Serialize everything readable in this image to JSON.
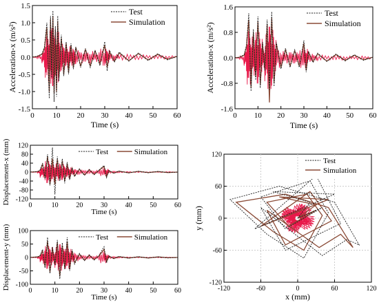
{
  "colors": {
    "test": "#1a1a1a",
    "simulation": "#8a4a36",
    "noise": "#e8194a"
  },
  "chart_data": [
    {
      "id": "acc-x",
      "type": "line",
      "xlabel": "Time (s)",
      "ylabel": "Acceleration-x (m/s²)",
      "xlim": [
        0,
        60
      ],
      "ylim": [
        -1.5,
        1.5
      ],
      "xticks": [
        "0",
        "10",
        "20",
        "30",
        "40",
        "50",
        "60"
      ],
      "yticks": [
        "1.5",
        "1.0",
        "0.5",
        "0.0",
        "-0.5",
        "-1.0",
        "-1.5"
      ],
      "legend_position": "top-right",
      "series": [
        {
          "name": "Test",
          "style": "dashed",
          "x": [
            0,
            2,
            4,
            5,
            6,
            7,
            7.5,
            8,
            8.5,
            9,
            9.5,
            10,
            10.5,
            11,
            12,
            13,
            14,
            15,
            16,
            17,
            18,
            20,
            22,
            24,
            26,
            28,
            30,
            31,
            32,
            34,
            36,
            40,
            44,
            48,
            52,
            56,
            60
          ],
          "y": [
            0,
            0.02,
            0.1,
            0.3,
            1.0,
            -1.2,
            1.2,
            -0.6,
            1.35,
            -1.3,
            0.9,
            -1.15,
            1.2,
            -0.7,
            0.65,
            -0.55,
            0.45,
            -0.5,
            0.4,
            -0.35,
            0.3,
            -0.3,
            0.25,
            -0.3,
            0.2,
            -0.25,
            0.45,
            -0.4,
            0.2,
            -0.15,
            0.15,
            -0.12,
            0.12,
            -0.1,
            0.1,
            -0.08,
            0.02
          ]
        },
        {
          "name": "Simulation",
          "style": "solid",
          "x": [
            0,
            2,
            4,
            5,
            6,
            7,
            7.5,
            8,
            8.5,
            9,
            9.5,
            10,
            10.5,
            11,
            12,
            13,
            14,
            15,
            16,
            17,
            18,
            20,
            22,
            24,
            26,
            28,
            30,
            31,
            32,
            34,
            36,
            40,
            44,
            48,
            52,
            56,
            60
          ],
          "y": [
            0,
            0.02,
            0.08,
            0.25,
            0.85,
            -1.0,
            1.1,
            -0.5,
            1.2,
            -1.05,
            0.8,
            -1.0,
            1.05,
            -0.6,
            0.55,
            -0.5,
            0.4,
            -0.45,
            0.35,
            -0.3,
            0.28,
            -0.25,
            0.22,
            -0.25,
            0.18,
            -0.2,
            0.35,
            -0.3,
            0.15,
            -0.12,
            0.12,
            -0.1,
            0.1,
            -0.08,
            0.08,
            -0.06,
            0.02
          ]
        }
      ]
    },
    {
      "id": "acc-y",
      "type": "line",
      "xlabel": "Time (s)",
      "ylabel": "Acceleration-x (m/s²)",
      "xlim": [
        0,
        60
      ],
      "ylim": [
        -1.6,
        1.6
      ],
      "xticks": [
        "0",
        "10",
        "20",
        "30",
        "40",
        "50",
        "60"
      ],
      "yticks": [
        "1.6",
        "0.8",
        "0.0",
        "-0.8",
        "-1.6"
      ],
      "legend_position": "top-right",
      "series": [
        {
          "name": "Test",
          "style": "dashed",
          "x": [
            0,
            2,
            4,
            5,
            6,
            7,
            8,
            9,
            10,
            11,
            12,
            13,
            14,
            15,
            16,
            17,
            18,
            20,
            22,
            24,
            26,
            28,
            30,
            31,
            32,
            34,
            36,
            40,
            44,
            48,
            52,
            56,
            60
          ],
          "y": [
            0,
            0.02,
            0.1,
            0.4,
            1.4,
            -1.05,
            0.9,
            -0.7,
            1.3,
            -0.95,
            0.5,
            -0.4,
            1.2,
            -1.0,
            1.45,
            -0.9,
            0.5,
            -0.35,
            0.3,
            -0.3,
            0.25,
            -0.3,
            0.55,
            -0.45,
            0.2,
            -0.15,
            0.15,
            -0.12,
            0.12,
            -0.1,
            0.1,
            -0.08,
            0.02
          ]
        },
        {
          "name": "Simulation",
          "style": "solid",
          "x": [
            0,
            2,
            4,
            5,
            6,
            7,
            8,
            9,
            10,
            11,
            12,
            13,
            14,
            15,
            16,
            17,
            18,
            20,
            22,
            24,
            26,
            28,
            30,
            31,
            32,
            34,
            36,
            40,
            44,
            48,
            52,
            56,
            60
          ],
          "y": [
            0,
            0.02,
            0.08,
            0.35,
            1.2,
            -0.95,
            0.8,
            -0.6,
            1.15,
            -0.85,
            0.45,
            -0.35,
            1.05,
            -1.4,
            1.25,
            -0.8,
            0.45,
            -0.3,
            0.25,
            -0.25,
            0.22,
            -0.25,
            0.45,
            -0.4,
            0.18,
            -0.12,
            0.12,
            -0.1,
            0.1,
            -0.08,
            0.08,
            -0.06,
            0.02
          ]
        }
      ]
    },
    {
      "id": "disp-x",
      "type": "line",
      "xlabel": "Time (s)",
      "ylabel": "Displacement-x (mm)",
      "xlim": [
        0,
        60
      ],
      "ylim": [
        -120,
        120
      ],
      "xticks": [
        "0",
        "10",
        "20",
        "30",
        "40",
        "50",
        "60"
      ],
      "yticks": [
        "120",
        "80",
        "40",
        "0",
        "-40",
        "-80",
        "-120"
      ],
      "legend_position": "top",
      "series": [
        {
          "name": "Test",
          "style": "dashed",
          "x": [
            0,
            3,
            4,
            5,
            6,
            7,
            8,
            9,
            10,
            11,
            12,
            13,
            14,
            15,
            16,
            17,
            18,
            20,
            22,
            24,
            26,
            28,
            30,
            31,
            32,
            34,
            36,
            40,
            44,
            48,
            52,
            56,
            60
          ],
          "y": [
            0,
            2,
            10,
            40,
            -30,
            80,
            -60,
            110,
            -100,
            70,
            -40,
            60,
            -50,
            45,
            -35,
            20,
            -20,
            15,
            -15,
            12,
            -12,
            10,
            30,
            -25,
            8,
            -6,
            5,
            -4,
            4,
            -3,
            3,
            -2,
            0
          ]
        },
        {
          "name": "Simulation",
          "style": "solid",
          "x": [
            0,
            3,
            4,
            5,
            6,
            7,
            8,
            9,
            10,
            11,
            12,
            13,
            14,
            15,
            16,
            17,
            18,
            20,
            22,
            24,
            26,
            28,
            30,
            31,
            32,
            34,
            36,
            40,
            44,
            48,
            52,
            56,
            60
          ],
          "y": [
            0,
            2,
            8,
            35,
            -28,
            70,
            -55,
            60,
            -55,
            55,
            -35,
            50,
            -40,
            38,
            -30,
            18,
            -18,
            12,
            -12,
            10,
            -10,
            8,
            25,
            -20,
            6,
            -5,
            4,
            -3,
            3,
            -2,
            2,
            -2,
            0
          ]
        }
      ]
    },
    {
      "id": "disp-y",
      "type": "line",
      "xlabel": "Time (s)",
      "ylabel": "Displacement-y (mm)",
      "xlim": [
        0,
        60
      ],
      "ylim": [
        -100,
        100
      ],
      "xticks": [
        "0",
        "10",
        "20",
        "30",
        "40",
        "50",
        "60"
      ],
      "yticks": [
        "100",
        "50",
        "0",
        "-50",
        "-100"
      ],
      "legend_position": "top",
      "series": [
        {
          "name": "Test",
          "style": "dashed",
          "x": [
            0,
            3,
            4,
            5,
            6,
            7,
            8,
            9,
            10,
            11,
            12,
            13,
            14,
            15,
            16,
            17,
            18,
            20,
            22,
            24,
            26,
            28,
            30,
            31,
            32,
            34,
            36,
            40,
            44,
            48,
            52,
            56,
            60
          ],
          "y": [
            0,
            2,
            8,
            30,
            -40,
            75,
            -60,
            40,
            -30,
            65,
            -80,
            55,
            -45,
            75,
            -50,
            30,
            -25,
            15,
            -12,
            10,
            -10,
            8,
            40,
            -20,
            6,
            -5,
            4,
            -3,
            3,
            -2,
            2,
            -2,
            0
          ]
        },
        {
          "name": "Simulation",
          "style": "solid",
          "x": [
            0,
            3,
            4,
            5,
            6,
            7,
            8,
            9,
            10,
            11,
            12,
            13,
            14,
            15,
            16,
            17,
            18,
            20,
            22,
            24,
            26,
            28,
            30,
            31,
            32,
            34,
            36,
            40,
            44,
            48,
            52,
            56,
            60
          ],
          "y": [
            0,
            2,
            6,
            25,
            -35,
            60,
            -55,
            35,
            -25,
            55,
            -70,
            45,
            -40,
            60,
            -45,
            25,
            -20,
            12,
            -10,
            8,
            -8,
            6,
            30,
            -15,
            5,
            -4,
            3,
            -2,
            2,
            -2,
            2,
            -1,
            0
          ]
        }
      ]
    },
    {
      "id": "orbit",
      "type": "line",
      "xlabel": "x (mm)",
      "ylabel": "y (mm)",
      "xlim": [
        -120,
        120
      ],
      "ylim": [
        -120,
        120
      ],
      "xticks": [
        "-120",
        "-60",
        "0",
        "60",
        "120"
      ],
      "yticks": [
        "120",
        "60",
        "0",
        "-60",
        "-120"
      ],
      "grid": true,
      "legend_position": "top-right",
      "series": [
        {
          "name": "Test",
          "style": "dashed",
          "x": [
            0,
            20,
            -40,
            60,
            -70,
            30,
            70,
            -20,
            -60,
            40,
            80,
            100,
            60,
            -30,
            -110,
            -50,
            10,
            50,
            20,
            -60,
            -20,
            40,
            0
          ],
          "y": [
            0,
            30,
            50,
            45,
            -20,
            80,
            -10,
            -60,
            20,
            -70,
            -40,
            -50,
            30,
            60,
            35,
            -30,
            -75,
            10,
            70,
            40,
            -20,
            20,
            0
          ]
        },
        {
          "name": "Simulation",
          "style": "solid",
          "x": [
            0,
            30,
            -30,
            50,
            -60,
            20,
            55,
            -20,
            -50,
            35,
            70,
            90,
            50,
            -20,
            -100,
            -40,
            10,
            40,
            15,
            -50,
            -15,
            30,
            0
          ],
          "y": [
            0,
            25,
            40,
            35,
            -15,
            50,
            -5,
            -50,
            15,
            -55,
            -30,
            -55,
            20,
            45,
            30,
            -25,
            -60,
            5,
            45,
            30,
            -15,
            15,
            0
          ]
        }
      ]
    }
  ]
}
